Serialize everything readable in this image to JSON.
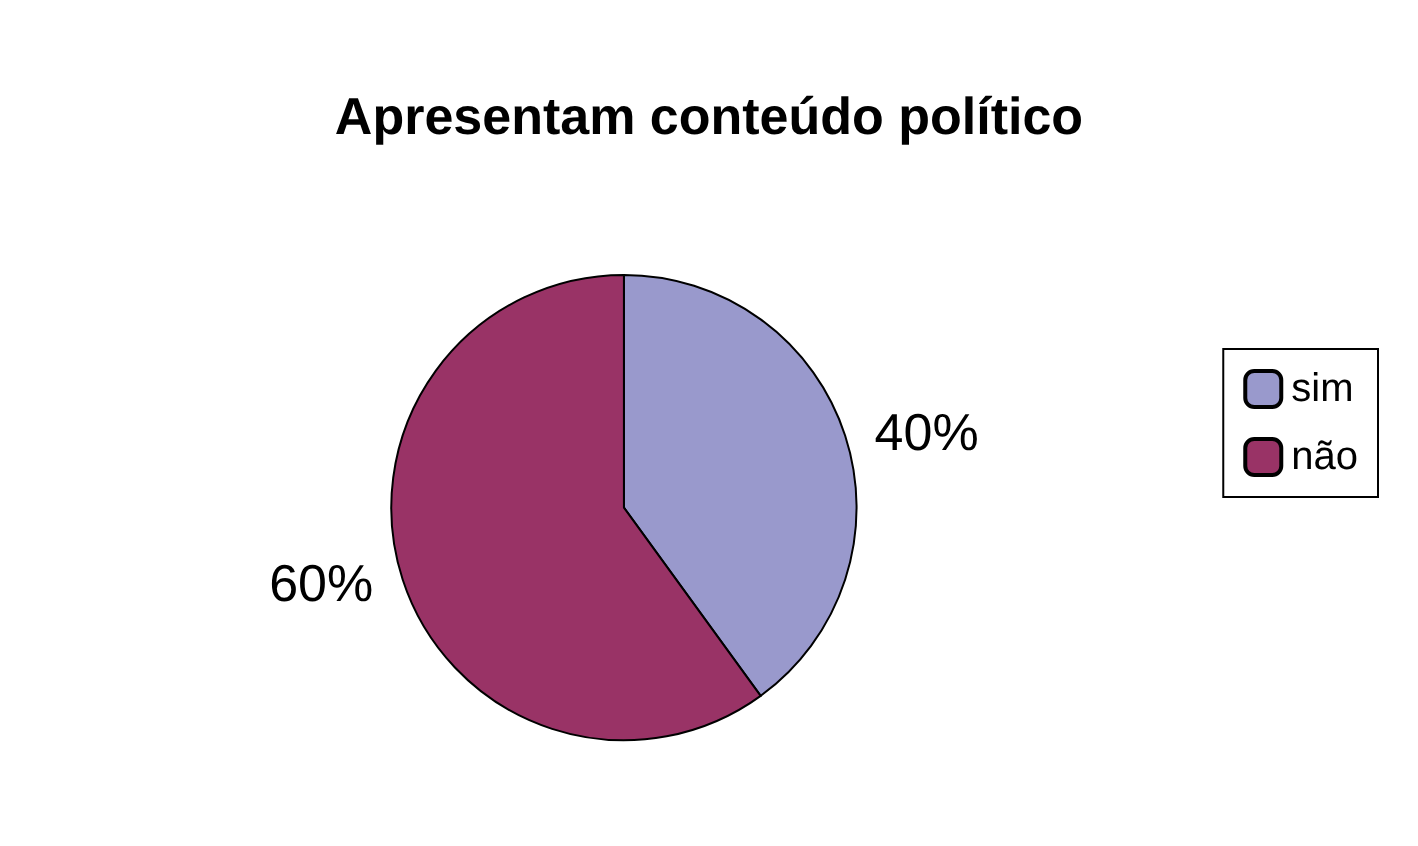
{
  "chart_data": {
    "type": "pie",
    "title": "Apresentam conteúdo político",
    "categories": [
      "sim",
      "não"
    ],
    "values": [
      40,
      60
    ],
    "colors": [
      "#9999cc",
      "#993366"
    ],
    "value_labels": [
      "40%",
      "60%"
    ],
    "legend": "right"
  }
}
